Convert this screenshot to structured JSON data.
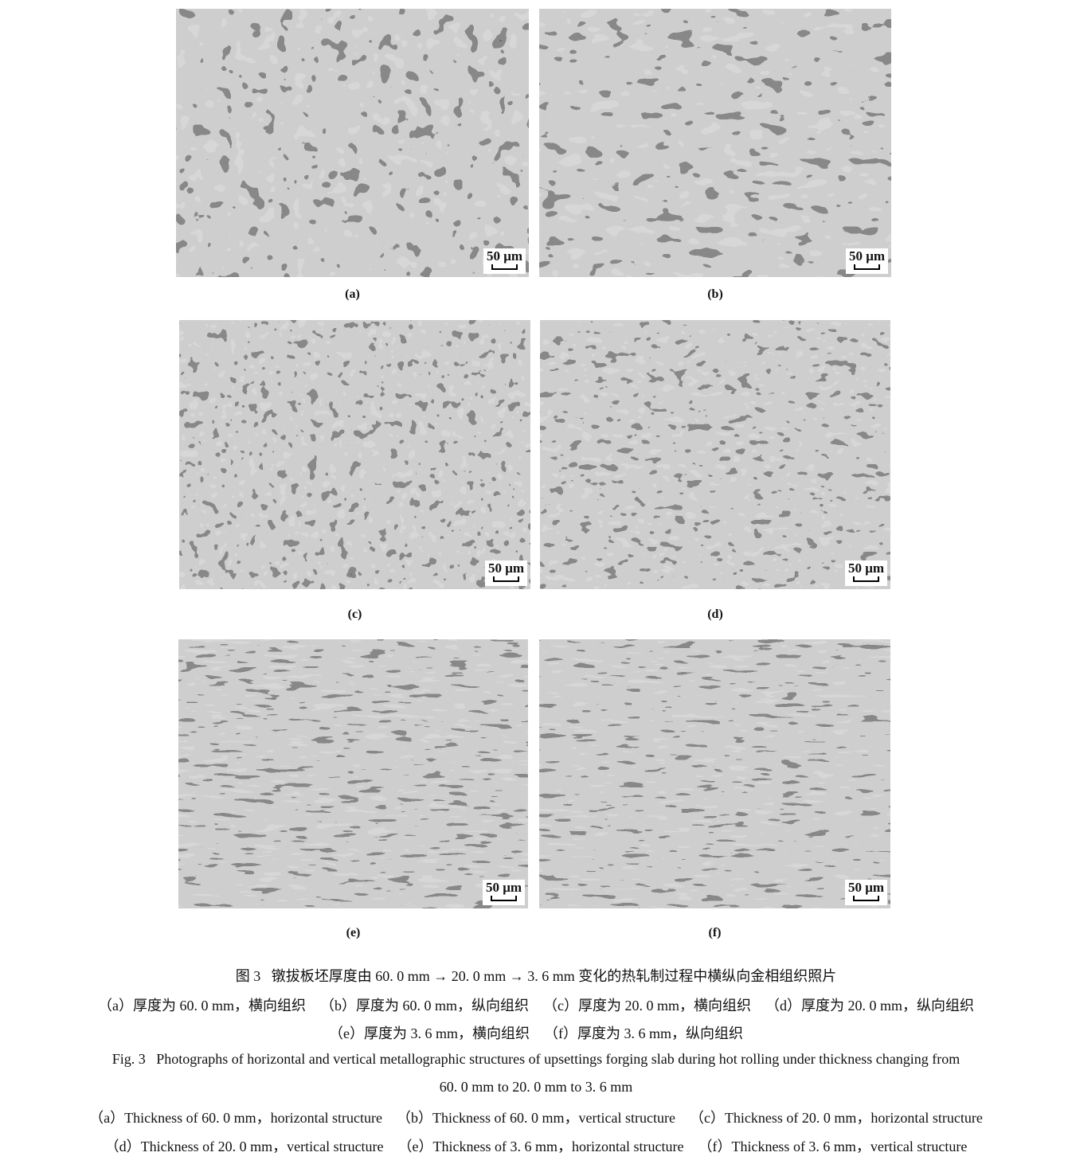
{
  "figure": {
    "panels": [
      {
        "label": "(a)",
        "scale_bar": "50 μm",
        "texture": "coarse-equiaxed"
      },
      {
        "label": "(b)",
        "scale_bar": "50 μm",
        "texture": "coarse-elongated"
      },
      {
        "label": "(c)",
        "scale_bar": "50 μm",
        "texture": "medium"
      },
      {
        "label": "(d)",
        "scale_bar": "50 μm",
        "texture": "medium-elongated"
      },
      {
        "label": "(e)",
        "scale_bar": "50 μm",
        "texture": "fine-banded"
      },
      {
        "label": "(f)",
        "scale_bar": "50 μm",
        "texture": "fine-banded"
      }
    ]
  },
  "caption": {
    "zh_title": "图 3   镦拔板坯厚度由 60. 0 mm → 20. 0 mm → 3. 6 mm 变化的热轧制过程中横纵向金相组织照片",
    "zh_line1": "（a）厚度为 60. 0 mm，横向组织    （b）厚度为 60. 0 mm，纵向组织    （c）厚度为 20. 0 mm，横向组织    （d）厚度为 20. 0 mm，纵向组织",
    "zh_line2": "（e）厚度为 3. 6 mm，横向组织    （f）厚度为 3. 6 mm，纵向组织",
    "en_title_1": "Fig. 3   Photographs of horizontal and vertical metallographic structures of upsettings forging slab during hot rolling under thickness changing from",
    "en_title_2": "60. 0 mm to 20. 0 mm to 3. 6 mm",
    "en_line1": "（a）Thickness of 60. 0 mm，horizontal structure    （b）Thickness of 60. 0 mm，vertical structure    （c）Thickness of 20. 0 mm，horizontal structure",
    "en_line2": "（d）Thickness of 20. 0 mm，vertical structure    （e）Thickness of 3. 6 mm，horizontal structure    （f）Thickness of 3. 6 mm，vertical structure"
  }
}
